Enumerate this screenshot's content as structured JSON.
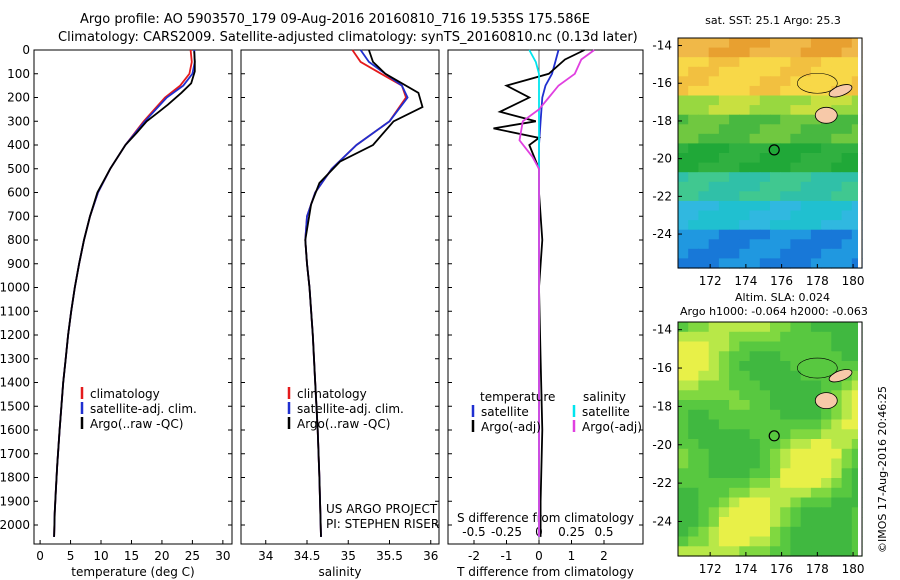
{
  "header": {
    "line1": "Argo profile: AO 5903570_179 09-Aug-2016 20160810_716 19.535S 175.586E",
    "line2": "Climatology: CARS2009. Satellite-adjusted climatology: synTS_20160810.nc (0.13d later)"
  },
  "footer_stamp": "©IMOS 17-Aug-2016 20:46:25",
  "colors": {
    "climatology": "#e41a1c",
    "satellite": "#1f2fd0",
    "argo": "#000000",
    "sat_diff": "#00e5ee",
    "argo_s_diff": "#e040e0",
    "land": "#f7c9a9"
  },
  "chart_data": [
    {
      "type": "line",
      "name": "temperature",
      "xlabel": "temperature (deg C)",
      "ylabel": "",
      "xlim": [
        -1,
        31.5
      ],
      "ylim": [
        2080,
        0
      ],
      "xticks": [
        0,
        5,
        10,
        15,
        20,
        25,
        30
      ],
      "yticks": [
        0,
        100,
        200,
        300,
        400,
        500,
        600,
        700,
        800,
        900,
        1000,
        1100,
        1200,
        1300,
        1400,
        1500,
        1600,
        1700,
        1800,
        1900,
        2000
      ],
      "legend": {
        "placement": "lower-left",
        "entries": [
          "climatology",
          "satellite-adj. clim.",
          "Argo(..raw -QC)"
        ]
      },
      "series": [
        {
          "name": "climatology",
          "color": "#e41a1c",
          "x": [
            24.7,
            24.9,
            24.5,
            23.0,
            20.5,
            17.0,
            14.0,
            11.5,
            9.5,
            8.2,
            7.2,
            6.4,
            5.7,
            5.1,
            4.6,
            4.2,
            3.8,
            3.5,
            3.2,
            2.8,
            2.6,
            2.4,
            2.3
          ],
          "y": [
            0,
            50,
            100,
            150,
            200,
            300,
            400,
            500,
            600,
            700,
            800,
            900,
            1000,
            1100,
            1200,
            1300,
            1400,
            1500,
            1600,
            1750,
            1850,
            1950,
            2050
          ]
        },
        {
          "name": "satellite-adj. clim.",
          "color": "#1f2fd0",
          "x": [
            25.3,
            25.4,
            25.0,
            23.5,
            20.8,
            17.2,
            14.0,
            11.5,
            9.5,
            8.2,
            7.2,
            6.4,
            5.7,
            5.1,
            4.6,
            4.2,
            3.8,
            3.5,
            3.2,
            2.8,
            2.6,
            2.4,
            2.3
          ],
          "y": [
            0,
            50,
            100,
            150,
            200,
            300,
            400,
            500,
            600,
            700,
            800,
            900,
            1000,
            1100,
            1200,
            1300,
            1400,
            1500,
            1600,
            1750,
            1850,
            1950,
            2050
          ]
        },
        {
          "name": "Argo(..raw -QC)",
          "color": "#000000",
          "x": [
            25.3,
            25.4,
            25.4,
            24.8,
            23.2,
            21.0,
            19.5,
            17.5,
            15.8,
            14.0,
            11.5,
            9.4,
            8.2,
            7.2,
            6.4,
            5.7,
            5.1,
            4.6,
            4.2,
            3.8,
            3.5,
            3.2,
            2.8,
            2.6,
            2.4,
            2.3
          ],
          "y": [
            5,
            50,
            90,
            140,
            180,
            230,
            260,
            300,
            350,
            400,
            500,
            600,
            700,
            800,
            900,
            1000,
            1100,
            1200,
            1300,
            1400,
            1500,
            1600,
            1750,
            1850,
            1950,
            2050
          ]
        }
      ]
    },
    {
      "type": "line",
      "name": "salinity",
      "xlabel": "salinity",
      "ylabel": "",
      "xlim": [
        33.7,
        36.1
      ],
      "ylim": [
        2080,
        0
      ],
      "xticks": [
        34,
        34.5,
        35,
        35.5,
        36
      ],
      "xtick_labels": [
        "34",
        "34.5",
        "35",
        "35.5",
        "36"
      ],
      "legend": {
        "placement": "lower-left",
        "entries": [
          "climatology",
          "satellite-adj. clim.",
          "Argo(..raw -QC)"
        ]
      },
      "annotation": [
        "US ARGO PROJECT",
        "PI: STEPHEN RISER"
      ],
      "series": [
        {
          "name": "climatology",
          "color": "#e41a1c",
          "x": [
            35.05,
            35.15,
            35.4,
            35.65,
            35.7,
            35.5,
            35.1,
            34.8,
            34.6,
            34.5,
            34.48,
            34.5,
            34.53,
            34.57,
            34.6,
            34.63,
            34.65,
            34.67
          ],
          "y": [
            0,
            50,
            100,
            150,
            200,
            300,
            400,
            500,
            600,
            700,
            800,
            900,
            1000,
            1200,
            1400,
            1600,
            1800,
            2050
          ]
        },
        {
          "name": "satellite-adj. clim.",
          "color": "#1f2fd0",
          "x": [
            35.15,
            35.25,
            35.45,
            35.65,
            35.72,
            35.5,
            35.1,
            34.8,
            34.6,
            34.5,
            34.48,
            34.5,
            34.53,
            34.57,
            34.6,
            34.63,
            34.65,
            34.67
          ],
          "y": [
            0,
            50,
            100,
            150,
            200,
            300,
            400,
            500,
            600,
            700,
            800,
            900,
            1000,
            1200,
            1400,
            1600,
            1800,
            2050
          ]
        },
        {
          "name": "Argo(..raw -QC)",
          "color": "#000000",
          "x": [
            35.25,
            35.3,
            35.45,
            35.85,
            35.9,
            35.55,
            35.3,
            34.9,
            34.65,
            34.55,
            34.48,
            34.5,
            34.53,
            34.57,
            34.6,
            34.63,
            34.65,
            34.67
          ],
          "y": [
            0,
            50,
            100,
            180,
            240,
            300,
            400,
            470,
            560,
            650,
            800,
            900,
            1000,
            1200,
            1400,
            1600,
            1800,
            2050
          ]
        }
      ]
    },
    {
      "type": "line",
      "name": "difference from climatology",
      "xlabel": "T difference from climatology",
      "x2label": "S difference from climatology",
      "xlim": [
        -2.8,
        3.2
      ],
      "ylim": [
        2080,
        0
      ],
      "xticks": [
        -2,
        -1,
        0,
        1,
        2
      ],
      "x2ticks": [
        -0.5,
        -0.25,
        0,
        0.25,
        0.5
      ],
      "x2tick_labels": [
        "-0.5",
        "-0.25",
        "0",
        "0.25",
        "0.5"
      ],
      "legend": {
        "placement": "lower-center",
        "headers": [
          "temperature",
          "salinity"
        ],
        "entries": [
          "satellite",
          "Argo(-adj)",
          "satellite",
          "Argo(-adj)"
        ]
      },
      "series": [
        {
          "name": "temperature satellite",
          "color": "#1f2fd0",
          "x": [
            0.6,
            0.5,
            0.4,
            0.2,
            0.1,
            0.05,
            0.0,
            0.0,
            0.0,
            0.0,
            0.0,
            0.0,
            0.0,
            0.0
          ],
          "y": [
            0,
            50,
            100,
            150,
            200,
            300,
            400,
            500,
            700,
            1000,
            1300,
            1600,
            1900,
            2050
          ]
        },
        {
          "name": "temperature Argo(-adj)",
          "color": "#000000",
          "x": [
            1.4,
            0.8,
            0.3,
            -1.0,
            -0.3,
            -1.2,
            -0.1,
            -1.4,
            0.0,
            -0.3,
            0.0,
            0.0,
            0.1,
            0.0,
            0.05,
            0.1,
            0.05,
            0.05
          ],
          "y": [
            0,
            40,
            100,
            150,
            200,
            260,
            300,
            330,
            370,
            400,
            500,
            600,
            800,
            1000,
            1300,
            1600,
            1900,
            2050
          ]
        },
        {
          "name": "salinity satellite",
          "color": "#00e5ee",
          "x": [
            -0.3,
            -0.1,
            0.0,
            0.0,
            0.0,
            0.0,
            0.0,
            0.0,
            0.0,
            0.0,
            0.0,
            0.0,
            0.0
          ],
          "y": [
            0,
            50,
            100,
            150,
            200,
            300,
            400,
            600,
            900,
            1200,
            1500,
            1800,
            2050
          ]
        },
        {
          "name": "salinity Argo(-adj)",
          "color": "#e040e0",
          "x": [
            1.7,
            1.3,
            1.1,
            0.6,
            0.3,
            0.0,
            -0.5,
            -0.6,
            -0.2,
            0.0,
            0.0,
            0.0,
            0.0,
            0.0,
            0.0
          ],
          "y": [
            0,
            40,
            100,
            150,
            200,
            250,
            300,
            380,
            450,
            500,
            600,
            900,
            1300,
            1700,
            2050
          ]
        }
      ]
    },
    {
      "type": "heatmap",
      "name": "sst map",
      "title": "sat. SST: 25.1  Argo: 25.3",
      "xlim": [
        170.2,
        180.5
      ],
      "ylim": [
        -25.8,
        -13.6
      ],
      "xticks": [
        172,
        174,
        176,
        178,
        180
      ],
      "yticks": [
        -14,
        -16,
        -18,
        -20,
        -22,
        -24
      ],
      "marker": {
        "x": 175.586,
        "y": -19.535
      }
    },
    {
      "type": "heatmap",
      "name": "sla map",
      "title": "Altim. SLA: 0.024",
      "subtitle": "Argo h1000: -0.064 h2000: -0.063",
      "xlim": [
        170.2,
        180.5
      ],
      "ylim": [
        -25.8,
        -13.6
      ],
      "xticks": [
        172,
        174,
        176,
        178,
        180
      ],
      "yticks": [
        -14,
        -16,
        -18,
        -20,
        -22,
        -24
      ],
      "marker": {
        "x": 175.586,
        "y": -19.535
      }
    }
  ]
}
